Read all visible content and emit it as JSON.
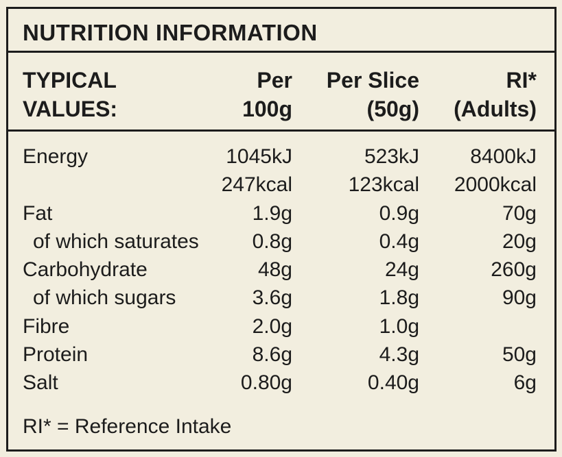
{
  "title": "NUTRITION INFORMATION",
  "header": {
    "col0": [
      "TYPICAL",
      "VALUES:"
    ],
    "col1": [
      "Per",
      "100g"
    ],
    "col2": [
      "Per Slice",
      "(50g)"
    ],
    "col3": [
      "RI*",
      "(Adults)"
    ]
  },
  "rows": [
    {
      "name": "Energy",
      "per100": "1045kJ",
      "perSlice": "523kJ",
      "ri": "8400kJ",
      "sub": false
    },
    {
      "name": "",
      "per100": "247kcal",
      "perSlice": "123kcal",
      "ri": "2000kcal",
      "sub": false
    },
    {
      "name": "Fat",
      "per100": "1.9g",
      "perSlice": "0.9g",
      "ri": "70g",
      "sub": false
    },
    {
      "name": "of which saturates",
      "per100": "0.8g",
      "perSlice": "0.4g",
      "ri": "20g",
      "sub": true
    },
    {
      "name": "Carbohydrate",
      "per100": "48g",
      "perSlice": "24g",
      "ri": "260g",
      "sub": false
    },
    {
      "name": "of which sugars",
      "per100": "3.6g",
      "perSlice": "1.8g",
      "ri": "90g",
      "sub": true
    },
    {
      "name": "Fibre",
      "per100": "2.0g",
      "perSlice": "1.0g",
      "ri": "",
      "sub": false
    },
    {
      "name": "Protein",
      "per100": "8.6g",
      "perSlice": "4.3g",
      "ri": "50g",
      "sub": false
    },
    {
      "name": "Salt",
      "per100": "0.80g",
      "perSlice": "0.40g",
      "ri": "6g",
      "sub": false
    }
  ],
  "footnote": "RI* = Reference Intake"
}
